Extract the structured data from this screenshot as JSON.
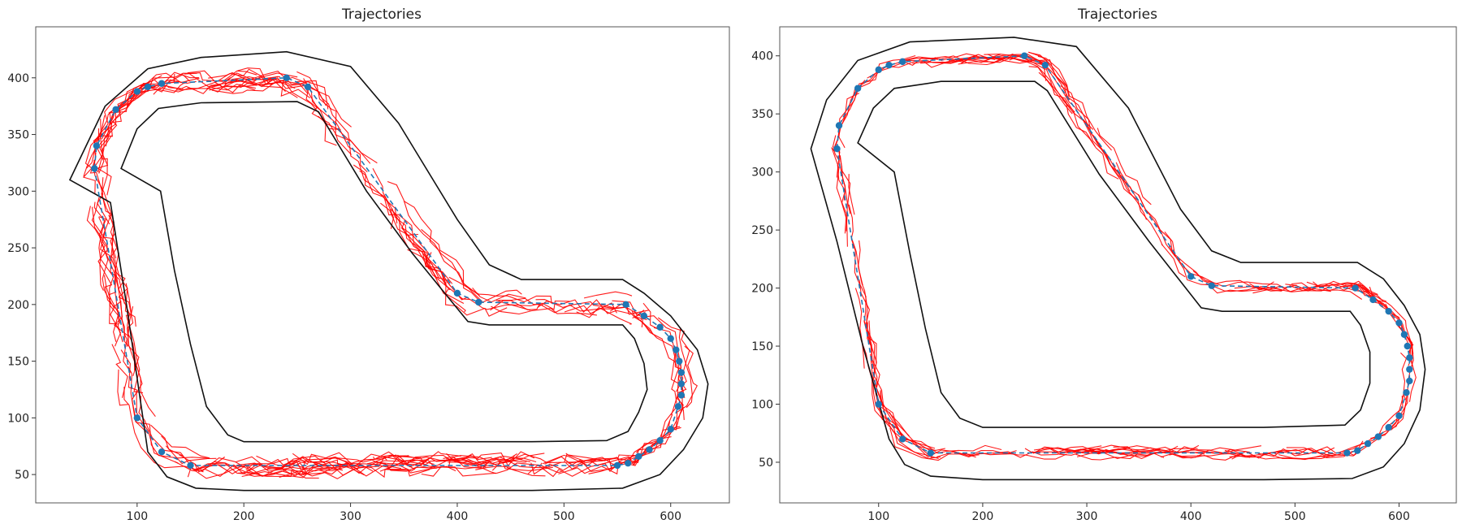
{
  "colors": {
    "track": "#111111",
    "trajectory": "#ff0000",
    "waypoint": "#1f77b4",
    "frame": "#555555"
  },
  "chart_data": [
    {
      "type": "scatter",
      "title": "Trajectories",
      "xlabel": "",
      "ylabel": "",
      "xlim": [
        5,
        655
      ],
      "ylim": [
        25,
        445
      ],
      "xticks": [
        100,
        200,
        300,
        400,
        500,
        600
      ],
      "yticks": [
        50,
        100,
        150,
        200,
        250,
        300,
        350,
        400
      ],
      "grid": false,
      "track_outer": [
        [
          37,
          310
        ],
        [
          70,
          375
        ],
        [
          110,
          408
        ],
        [
          160,
          418
        ],
        [
          240,
          423
        ],
        [
          300,
          410
        ],
        [
          345,
          360
        ],
        [
          400,
          275
        ],
        [
          430,
          235
        ],
        [
          460,
          222
        ],
        [
          555,
          222
        ],
        [
          575,
          210
        ],
        [
          600,
          190
        ],
        [
          625,
          160
        ],
        [
          635,
          130
        ],
        [
          630,
          100
        ],
        [
          612,
          72
        ],
        [
          590,
          50
        ],
        [
          555,
          38
        ],
        [
          470,
          36
        ],
        [
          200,
          36
        ],
        [
          155,
          38
        ],
        [
          128,
          48
        ],
        [
          110,
          70
        ],
        [
          90,
          200
        ],
        [
          75,
          290
        ]
      ],
      "track_inner": [
        [
          85,
          320
        ],
        [
          100,
          355
        ],
        [
          120,
          373
        ],
        [
          160,
          378
        ],
        [
          250,
          379
        ],
        [
          270,
          370
        ],
        [
          315,
          300
        ],
        [
          358,
          245
        ],
        [
          410,
          185
        ],
        [
          430,
          182
        ],
        [
          555,
          182
        ],
        [
          566,
          170
        ],
        [
          575,
          148
        ],
        [
          578,
          125
        ],
        [
          570,
          105
        ],
        [
          560,
          88
        ],
        [
          540,
          80
        ],
        [
          470,
          79
        ],
        [
          200,
          79
        ],
        [
          185,
          85
        ],
        [
          165,
          110
        ],
        [
          150,
          165
        ],
        [
          135,
          230
        ],
        [
          122,
          300
        ]
      ],
      "waypoints": [
        [
          60,
          320
        ],
        [
          62,
          340
        ],
        [
          80,
          372
        ],
        [
          100,
          388
        ],
        [
          110,
          392
        ],
        [
          123,
          395
        ],
        [
          240,
          400
        ],
        [
          260,
          392
        ],
        [
          400,
          210
        ],
        [
          420,
          202
        ],
        [
          558,
          200
        ],
        [
          575,
          190
        ],
        [
          590,
          180
        ],
        [
          600,
          170
        ],
        [
          605,
          160
        ],
        [
          608,
          150
        ],
        [
          610,
          140
        ],
        [
          610,
          130
        ],
        [
          610,
          120
        ],
        [
          607,
          110
        ],
        [
          600,
          90
        ],
        [
          590,
          80
        ],
        [
          580,
          72
        ],
        [
          570,
          66
        ],
        [
          560,
          60
        ],
        [
          550,
          58
        ],
        [
          150,
          58
        ],
        [
          123,
          70
        ],
        [
          100,
          100
        ]
      ],
      "trajectory_spread": 9,
      "trajectory_count": 180
    },
    {
      "type": "scatter",
      "title": "Trajectories",
      "xlabel": "",
      "ylabel": "",
      "xlim": [
        5,
        655
      ],
      "ylim": [
        15,
        425
      ],
      "xticks": [
        100,
        200,
        300,
        400,
        500,
        600
      ],
      "yticks": [
        50,
        100,
        150,
        200,
        250,
        300,
        350,
        400
      ],
      "grid": false,
      "track_outer": [
        [
          35,
          320
        ],
        [
          50,
          362
        ],
        [
          80,
          396
        ],
        [
          130,
          412
        ],
        [
          230,
          416
        ],
        [
          290,
          408
        ],
        [
          340,
          355
        ],
        [
          390,
          268
        ],
        [
          420,
          232
        ],
        [
          448,
          222
        ],
        [
          560,
          222
        ],
        [
          585,
          208
        ],
        [
          605,
          185
        ],
        [
          620,
          160
        ],
        [
          625,
          130
        ],
        [
          620,
          95
        ],
        [
          605,
          66
        ],
        [
          585,
          46
        ],
        [
          555,
          36
        ],
        [
          470,
          35
        ],
        [
          200,
          35
        ],
        [
          150,
          38
        ],
        [
          125,
          48
        ],
        [
          110,
          70
        ],
        [
          85,
          150
        ],
        [
          60,
          240
        ]
      ],
      "track_inner": [
        [
          80,
          325
        ],
        [
          95,
          355
        ],
        [
          115,
          372
        ],
        [
          160,
          378
        ],
        [
          250,
          378
        ],
        [
          262,
          370
        ],
        [
          312,
          298
        ],
        [
          360,
          240
        ],
        [
          410,
          183
        ],
        [
          430,
          180
        ],
        [
          553,
          180
        ],
        [
          563,
          168
        ],
        [
          572,
          145
        ],
        [
          572,
          118
        ],
        [
          563,
          95
        ],
        [
          548,
          82
        ],
        [
          470,
          80
        ],
        [
          200,
          80
        ],
        [
          178,
          88
        ],
        [
          160,
          110
        ],
        [
          145,
          165
        ],
        [
          130,
          230
        ],
        [
          115,
          300
        ]
      ],
      "waypoints": [
        [
          60,
          320
        ],
        [
          62,
          340
        ],
        [
          80,
          372
        ],
        [
          100,
          388
        ],
        [
          110,
          392
        ],
        [
          123,
          395
        ],
        [
          240,
          400
        ],
        [
          260,
          392
        ],
        [
          400,
          210
        ],
        [
          420,
          202
        ],
        [
          558,
          200
        ],
        [
          575,
          190
        ],
        [
          590,
          180
        ],
        [
          600,
          170
        ],
        [
          605,
          160
        ],
        [
          608,
          150
        ],
        [
          610,
          140
        ],
        [
          610,
          130
        ],
        [
          610,
          120
        ],
        [
          607,
          110
        ],
        [
          600,
          90
        ],
        [
          590,
          80
        ],
        [
          580,
          72
        ],
        [
          570,
          66
        ],
        [
          560,
          60
        ],
        [
          550,
          58
        ],
        [
          150,
          58
        ],
        [
          123,
          70
        ],
        [
          100,
          100
        ]
      ],
      "trajectory_spread": 5,
      "trajectory_count": 120
    }
  ]
}
